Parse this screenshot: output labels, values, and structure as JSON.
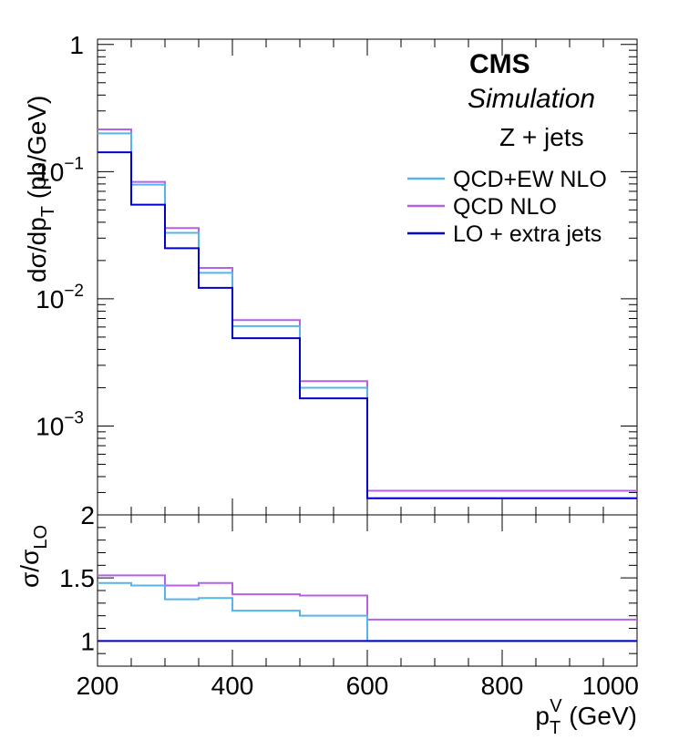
{
  "chart_data": [
    {
      "type": "line",
      "style": "step-histogram",
      "label_main": "CMS",
      "label_sub": "Simulation",
      "process": "Z + jets",
      "ylabel": "dσ/dp_T (pb/GeV)",
      "yscale": "log",
      "ylim": [
        0.0002,
        1.1
      ],
      "xlim": [
        200,
        1000
      ],
      "y_major_ticks": [
        {
          "value": 0.001,
          "base": "10",
          "exp": "−3"
        },
        {
          "value": 0.01,
          "base": "10",
          "exp": "−2"
        },
        {
          "value": 0.1,
          "base": "10",
          "exp": "−1"
        },
        {
          "value": 1,
          "base": "1",
          "exp": ""
        }
      ],
      "bin_edges": [
        200,
        250,
        300,
        350,
        400,
        500,
        600,
        1000
      ],
      "legend_position": "top-right",
      "series": [
        {
          "name": "QCD+EW NLO",
          "color": "#56b4e9",
          "values": [
            0.2,
            0.079,
            0.033,
            0.016,
            0.0061,
            0.002,
            0.00027
          ]
        },
        {
          "name": "QCD NLO",
          "color": "#b660e6",
          "values": [
            0.215,
            0.083,
            0.036,
            0.0175,
            0.0068,
            0.00225,
            0.00031
          ]
        },
        {
          "name": "LO + extra jets",
          "color": "#0000cc",
          "values": [
            0.142,
            0.055,
            0.025,
            0.0122,
            0.0049,
            0.00165,
            0.00027
          ]
        }
      ]
    },
    {
      "type": "line",
      "style": "step-histogram",
      "ylabel": "σ/σ_LO",
      "ylim": [
        0.8,
        2.0
      ],
      "xlim": [
        200,
        1000
      ],
      "y_ticks": [
        1,
        1.5,
        2
      ],
      "x_ticks": [
        200,
        400,
        600,
        800,
        1000
      ],
      "xlabel": "p_T^V (GeV)",
      "bin_edges": [
        200,
        250,
        300,
        350,
        400,
        500,
        600,
        1000
      ],
      "series": [
        {
          "name": "QCD+EW NLO",
          "color": "#56b4e9",
          "values": [
            1.46,
            1.44,
            1.33,
            1.34,
            1.24,
            1.2,
            1.0
          ]
        },
        {
          "name": "QCD NLO",
          "color": "#b660e6",
          "values": [
            1.52,
            1.52,
            1.44,
            1.46,
            1.37,
            1.36,
            1.17
          ]
        },
        {
          "name": "LO + extra jets",
          "color": "#0000cc",
          "values": [
            1.0,
            1.0,
            1.0,
            1.0,
            1.0,
            1.0,
            1.0
          ]
        }
      ]
    }
  ]
}
